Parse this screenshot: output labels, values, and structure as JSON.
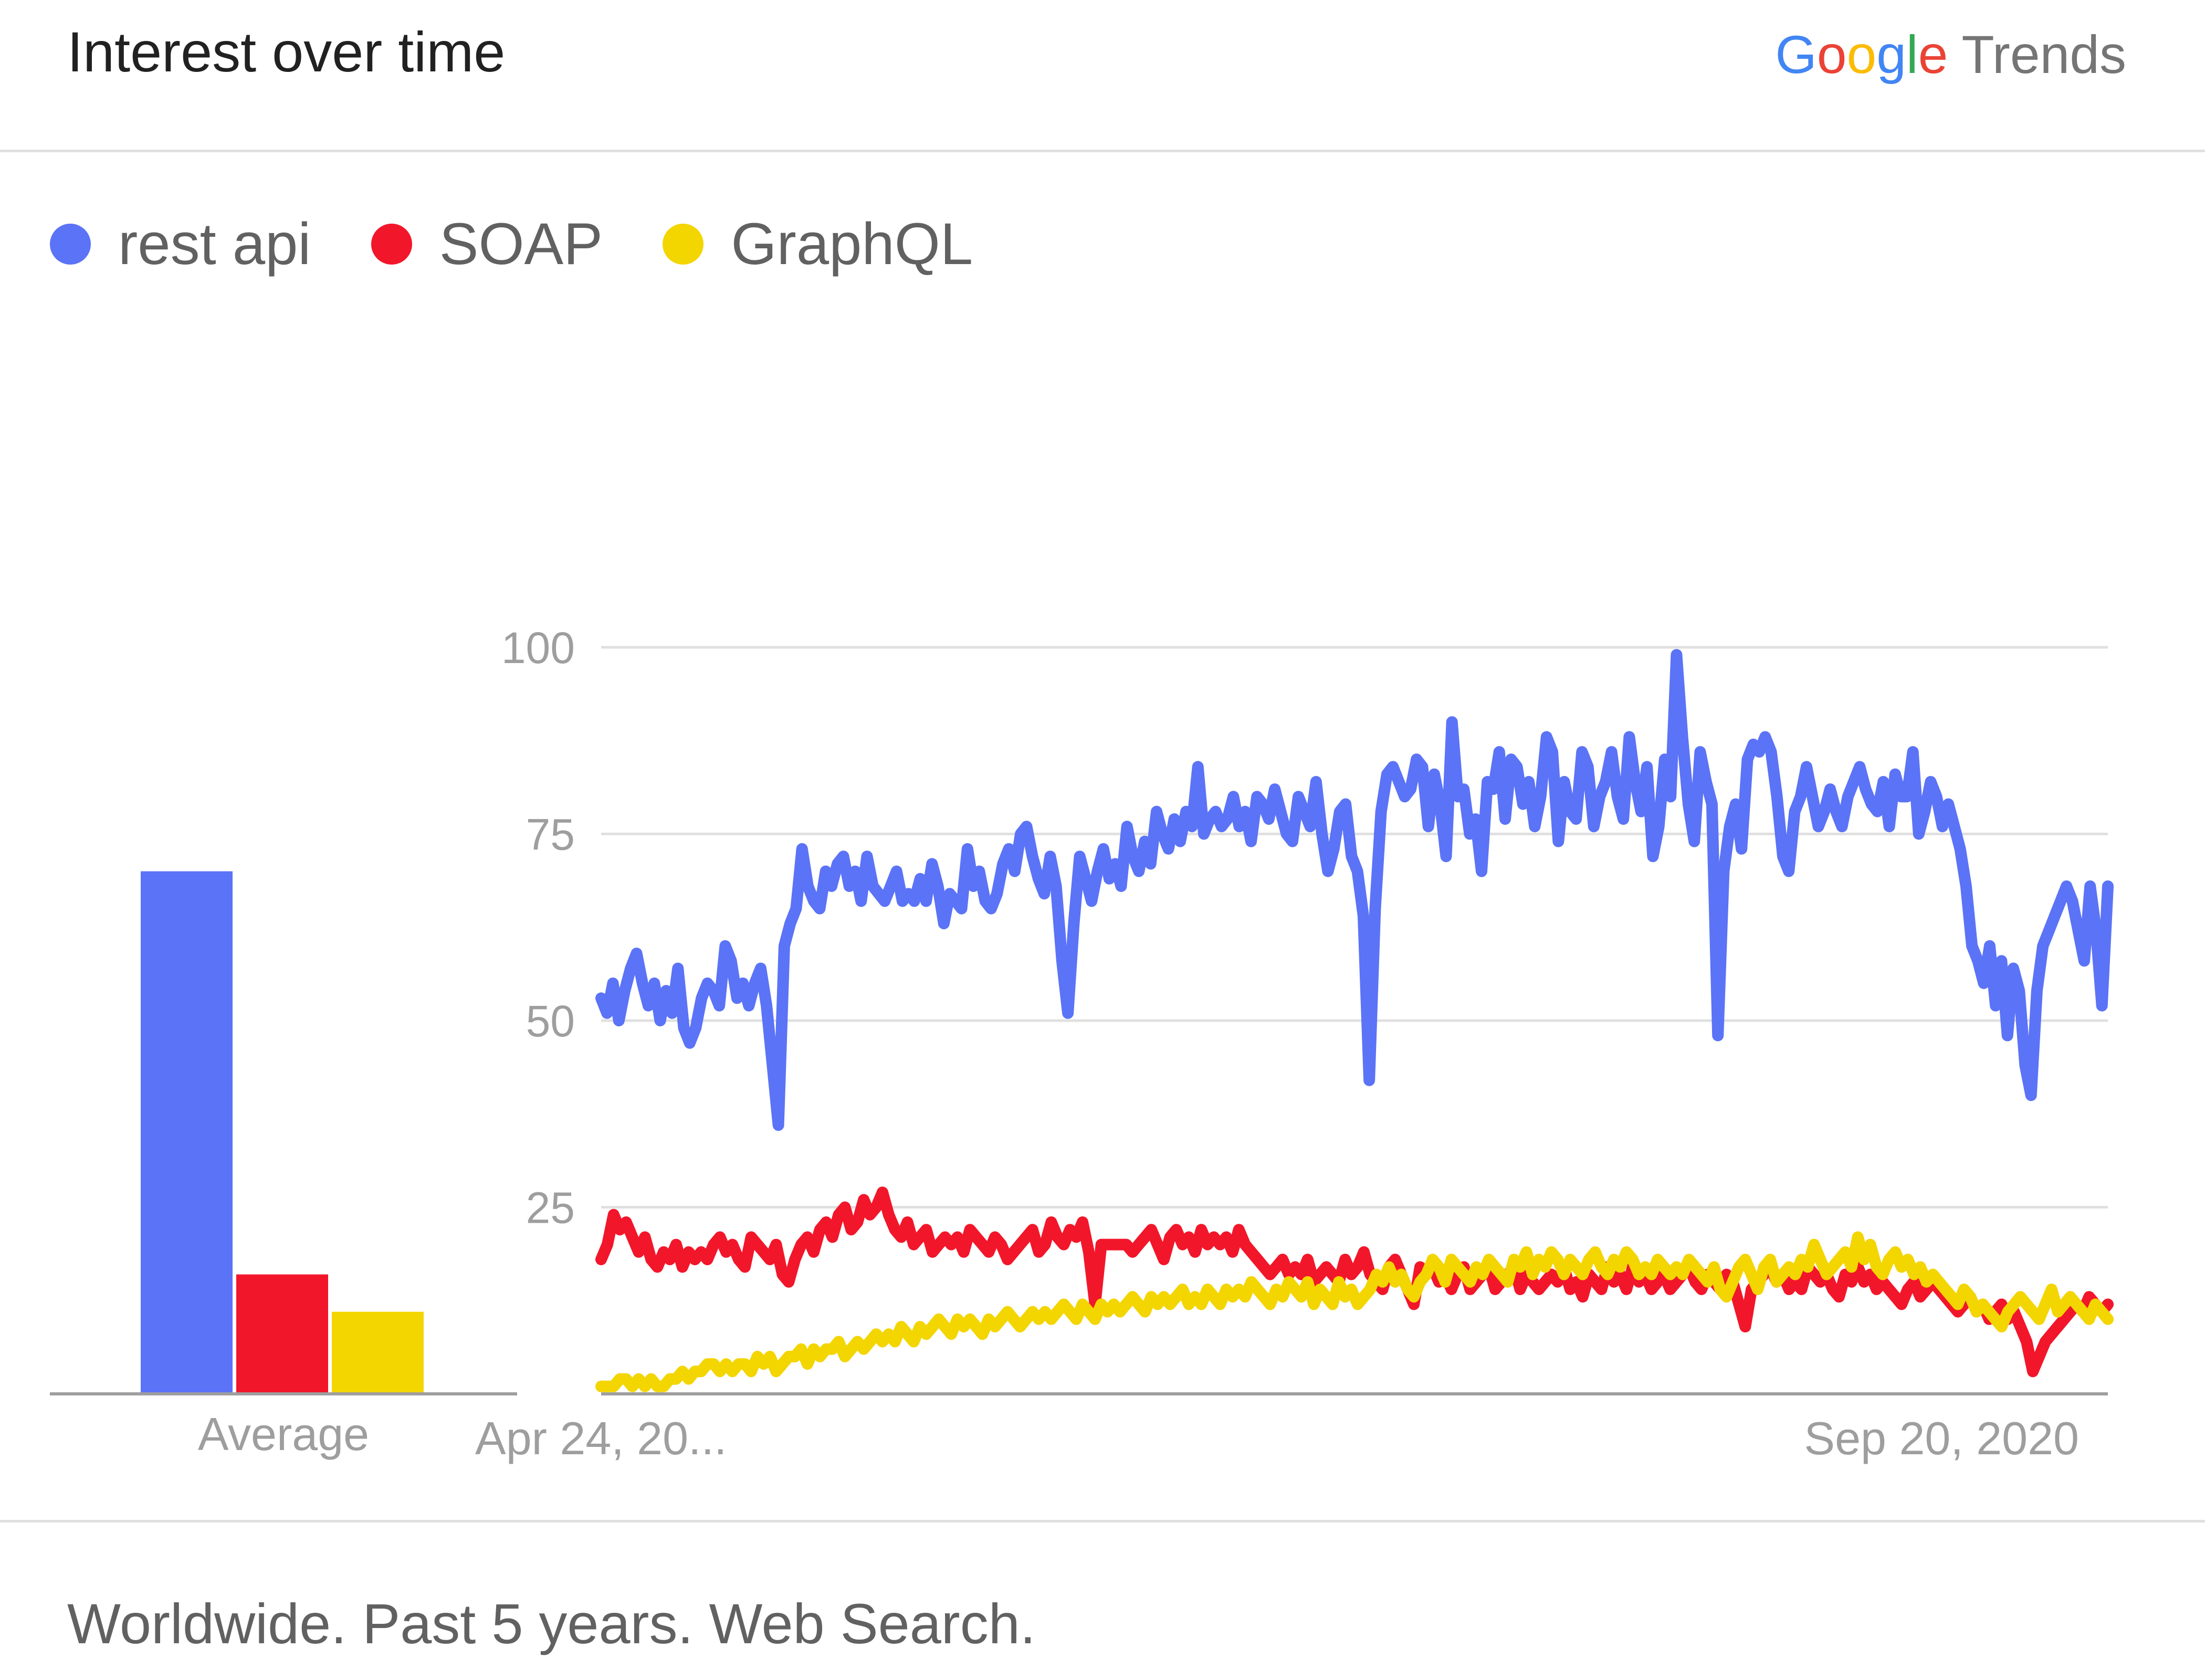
{
  "card": {
    "title": "Interest over time",
    "brand": {
      "google_letters": [
        "G",
        "o",
        "o",
        "g",
        "l",
        "e"
      ],
      "trends": "Trends"
    },
    "footer": "Worldwide. Past 5 years. Web Search."
  },
  "colors": {
    "rest_api": "#5b73f6",
    "soap": "#f2162a",
    "graphql": "#f3d500",
    "grid": "#e0e0e0",
    "axis": "#9e9e9e"
  },
  "chart_data": {
    "type": "line",
    "title": "",
    "ylim": [
      0,
      100
    ],
    "y_ticks": [
      "100",
      "75",
      "50",
      "25"
    ],
    "x_tick_labels": [
      "Apr 24, 20...",
      "Sep 20, 2020"
    ],
    "grid": true,
    "legend": "top-left",
    "average": {
      "label": "Average",
      "values": [
        {
          "name": "rest api",
          "value": 70
        },
        {
          "name": "SOAP",
          "value": 16
        },
        {
          "name": "GraphQL",
          "value": 11
        }
      ]
    },
    "series": [
      {
        "name": "rest api",
        "color": "#5b73f6",
        "values": [
          53,
          51,
          55,
          50,
          54,
          57,
          59,
          55,
          52,
          55,
          50,
          54,
          51,
          57,
          49,
          47,
          49,
          53,
          55,
          54,
          52,
          60,
          58,
          53,
          55,
          52,
          55,
          57,
          52,
          44,
          36,
          60,
          63,
          65,
          73,
          68,
          66,
          65,
          70,
          68,
          71,
          72,
          68,
          70,
          66,
          72,
          68,
          67,
          66,
          68,
          70,
          66,
          67,
          66,
          69,
          66,
          71,
          68,
          63,
          67,
          66,
          65,
          73,
          68,
          70,
          66,
          65,
          67,
          71,
          73,
          70,
          75,
          76,
          72,
          69,
          67,
          72,
          68,
          58,
          51,
          63,
          72,
          69,
          66,
          70,
          73,
          69,
          71,
          68,
          76,
          72,
          70,
          74,
          71,
          78,
          75,
          73,
          77,
          74,
          78,
          76,
          84,
          75,
          77,
          78,
          76,
          77,
          80,
          76,
          78,
          74,
          80,
          79,
          77,
          81,
          78,
          75,
          74,
          80,
          78,
          76,
          82,
          75,
          70,
          73,
          78,
          79,
          72,
          70,
          64,
          42,
          65,
          78,
          83,
          84,
          82,
          80,
          81,
          85,
          84,
          76,
          83,
          79,
          72,
          90,
          80,
          81,
          75,
          77,
          70,
          82,
          81,
          86,
          77,
          85,
          84,
          79,
          82,
          76,
          80,
          88,
          86,
          74,
          82,
          78,
          77,
          86,
          84,
          76,
          80,
          82,
          86,
          80,
          77,
          88,
          82,
          78,
          84,
          72,
          76,
          85,
          80,
          99,
          88,
          79,
          74,
          86,
          82,
          79,
          48,
          70,
          76,
          79,
          73,
          85,
          87,
          86,
          88,
          86,
          80,
          72,
          70,
          78,
          80,
          84,
          80,
          76,
          78,
          81,
          78,
          76,
          80,
          82,
          84,
          81,
          79,
          78,
          82,
          76,
          83,
          80,
          80,
          86,
          75,
          78,
          82,
          80,
          76,
          79,
          76,
          73,
          68,
          60,
          58,
          55,
          60,
          52,
          58,
          48,
          57,
          54,
          44,
          40,
          54,
          60,
          62,
          64,
          66,
          68,
          66,
          62,
          58,
          68,
          62,
          52,
          68
        ]
      },
      {
        "name": "SOAP",
        "color": "#f2162a",
        "values": [
          18,
          20,
          24,
          22,
          23,
          21,
          19,
          21,
          18,
          17,
          19,
          18,
          20,
          17,
          19,
          18,
          19,
          18,
          20,
          21,
          19,
          20,
          18,
          17,
          21,
          20,
          19,
          18,
          20,
          16,
          15,
          18,
          20,
          21,
          19,
          22,
          23,
          21,
          24,
          25,
          22,
          23,
          26,
          24,
          25,
          27,
          24,
          22,
          21,
          23,
          20,
          21,
          22,
          19,
          20,
          21,
          20,
          21,
          19,
          22,
          21,
          20,
          19,
          21,
          20,
          18,
          19,
          20,
          21,
          22,
          19,
          20,
          23,
          21,
          20,
          22,
          21,
          23,
          19,
          12,
          20,
          20,
          20,
          20,
          20,
          19,
          20,
          21,
          22,
          20,
          18,
          21,
          22,
          20,
          21,
          19,
          22,
          20,
          21,
          20,
          21,
          19,
          22,
          20,
          19,
          18,
          17,
          16,
          17,
          18,
          16,
          17,
          16,
          18,
          15,
          16,
          17,
          16,
          15,
          18,
          16,
          17,
          19,
          16,
          15,
          14,
          17,
          18,
          16,
          14,
          12,
          17,
          16,
          17,
          15,
          16,
          14,
          16,
          17,
          14,
          15,
          16,
          17,
          14,
          15,
          16,
          17,
          14,
          16,
          15,
          14,
          15,
          16,
          15,
          17,
          14,
          15,
          13,
          16,
          15,
          14,
          17,
          15,
          16,
          14,
          17,
          15,
          16,
          14,
          15,
          16,
          14,
          15,
          16,
          17,
          15,
          14,
          16,
          15,
          14,
          16,
          15,
          12,
          9,
          14,
          15,
          16,
          17,
          15,
          16,
          14,
          15,
          14,
          17,
          16,
          15,
          16,
          14,
          13,
          16,
          15,
          17,
          15,
          16,
          14,
          15,
          14,
          13,
          12,
          14,
          15,
          13,
          14,
          15,
          14,
          13,
          12,
          11,
          12,
          13,
          11,
          12,
          10,
          11,
          12,
          10,
          11,
          9,
          7,
          3,
          5,
          7,
          8,
          9,
          10,
          11,
          12,
          11,
          13,
          12,
          11,
          12
        ]
      },
      {
        "name": "GraphQL",
        "color": "#f3d500",
        "values": [
          1,
          1,
          1,
          2,
          2,
          1,
          2,
          1,
          2,
          1,
          1,
          2,
          2,
          3,
          2,
          3,
          3,
          4,
          4,
          3,
          4,
          3,
          4,
          4,
          3,
          5,
          4,
          5,
          3,
          4,
          5,
          5,
          6,
          4,
          6,
          5,
          6,
          6,
          7,
          5,
          6,
          7,
          6,
          7,
          8,
          7,
          8,
          7,
          9,
          8,
          7,
          9,
          8,
          9,
          10,
          9,
          8,
          10,
          9,
          10,
          9,
          8,
          10,
          9,
          10,
          11,
          10,
          9,
          10,
          11,
          10,
          11,
          10,
          11,
          12,
          11,
          10,
          12,
          11,
          10,
          12,
          11,
          12,
          11,
          12,
          13,
          12,
          11,
          13,
          12,
          13,
          12,
          13,
          14,
          12,
          13,
          12,
          14,
          13,
          12,
          14,
          13,
          14,
          13,
          15,
          14,
          13,
          12,
          14,
          13,
          15,
          14,
          13,
          15,
          12,
          14,
          13,
          12,
          15,
          13,
          14,
          12,
          13,
          14,
          16,
          15,
          17,
          15,
          16,
          14,
          13,
          15,
          16,
          18,
          17,
          15,
          18,
          17,
          16,
          15,
          17,
          16,
          18,
          17,
          16,
          15,
          18,
          17,
          19,
          16,
          18,
          17,
          19,
          18,
          16,
          18,
          17,
          16,
          18,
          19,
          17,
          16,
          18,
          17,
          19,
          18,
          16,
          17,
          16,
          18,
          17,
          16,
          17,
          16,
          18,
          17,
          16,
          15,
          17,
          14,
          13,
          15,
          17,
          18,
          16,
          14,
          17,
          18,
          15,
          16,
          17,
          16,
          18,
          17,
          20,
          18,
          16,
          17,
          18,
          19,
          17,
          21,
          18,
          20,
          17,
          16,
          18,
          19,
          17,
          18,
          16,
          17,
          15,
          16,
          15,
          14,
          13,
          12,
          14,
          13,
          11,
          12,
          11,
          10,
          9,
          11,
          12,
          13,
          12,
          11,
          10,
          12,
          14,
          11,
          12,
          13,
          12,
          11,
          10,
          12,
          11,
          10
        ]
      }
    ]
  }
}
